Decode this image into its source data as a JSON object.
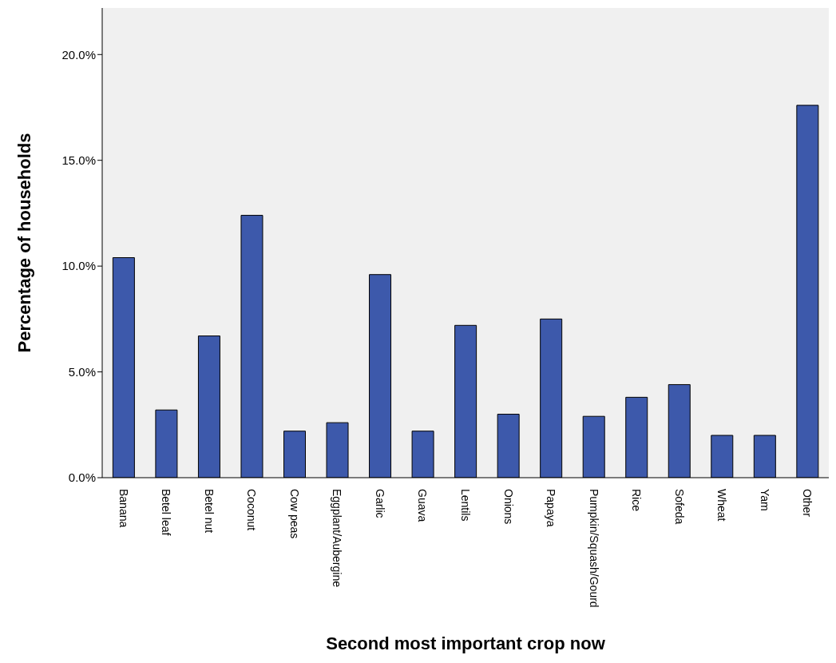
{
  "chart_data": {
    "type": "bar",
    "xlabel": "Second most important crop now",
    "ylabel": "Percentage of households",
    "categories": [
      "Banana",
      "Betel leaf",
      "Betel nut",
      "Coconut",
      "Cow peas",
      "Eggplant/Aubergine",
      "Garlic",
      "Guava",
      "Lentils",
      "Onions",
      "Papaya",
      "Pumpkin/Squash/Gourd",
      "Rice",
      "Sofeda",
      "Wheat",
      "Yam",
      "Other"
    ],
    "values": [
      10.4,
      3.2,
      6.7,
      12.4,
      2.2,
      2.6,
      9.6,
      2.2,
      7.2,
      3.0,
      7.5,
      2.9,
      3.8,
      4.4,
      2.0,
      2.0,
      17.6
    ],
    "color": "#3d59ab",
    "ylim": [
      0,
      22.2
    ],
    "yticks": [
      {
        "value": 0,
        "label": "0.0%"
      },
      {
        "value": 5,
        "label": "5.0%"
      },
      {
        "value": 10,
        "label": "10.0%"
      },
      {
        "value": 15,
        "label": "15.0%"
      },
      {
        "value": 20,
        "label": "20.0%"
      }
    ]
  }
}
